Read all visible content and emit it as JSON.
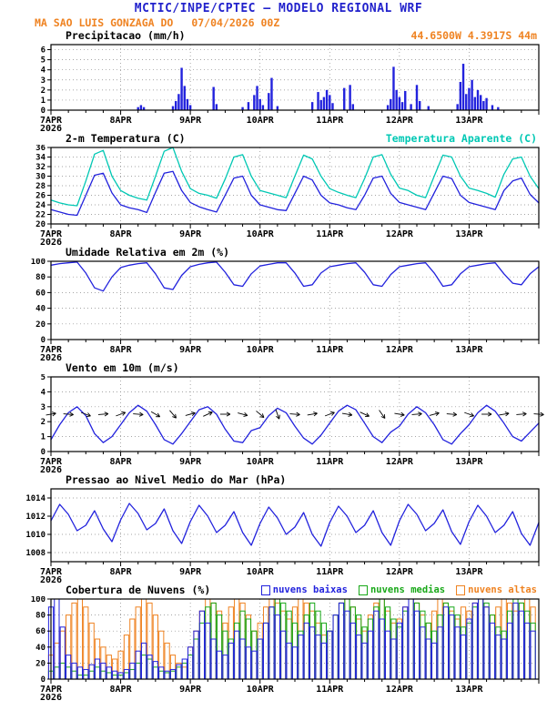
{
  "colors": {
    "title_blue": "#2222cc",
    "orange": "#ef8322",
    "line_blue": "#2222dd",
    "cyan": "#00c8b4",
    "green": "#18a818",
    "black": "#000000"
  },
  "header": {
    "title": "MCTIC/INPE/CPTEC — MODELO REGIONAL WRF",
    "station": "MA SAO LUIS GONZAGA DO",
    "run": "07/04/2026 00Z",
    "location": "44.6500W 4.3917S 44m"
  },
  "x_axis": {
    "hours_total": 168,
    "major_ticks": [
      0,
      24,
      48,
      72,
      96,
      120,
      144
    ],
    "labels": [
      "7APR",
      "8APR",
      "9APR",
      "10APR",
      "11APR",
      "12APR",
      "13APR"
    ],
    "year_label": "2026"
  },
  "chart_data": [
    {
      "id": "precip",
      "type": "bar",
      "title": "Precipitacao (mm/h)",
      "unit": "mm/h",
      "color": "#2222dd",
      "ylim": [
        0,
        6.5
      ],
      "yticks": [
        0,
        1,
        2,
        3,
        4,
        5,
        6
      ],
      "events": [
        [
          30,
          0.3
        ],
        [
          31,
          0.5
        ],
        [
          32,
          0.3
        ],
        [
          42,
          0.4
        ],
        [
          43,
          0.9
        ],
        [
          44,
          1.6
        ],
        [
          45,
          4.2
        ],
        [
          46,
          2.4
        ],
        [
          47,
          1.1
        ],
        [
          48,
          0.5
        ],
        [
          56,
          2.3
        ],
        [
          57,
          0.6
        ],
        [
          66,
          0.3
        ],
        [
          68,
          0.8
        ],
        [
          70,
          1.5
        ],
        [
          71,
          2.4
        ],
        [
          72,
          1.1
        ],
        [
          73,
          0.5
        ],
        [
          75,
          1.7
        ],
        [
          76,
          3.2
        ],
        [
          78,
          0.4
        ],
        [
          90,
          0.8
        ],
        [
          92,
          1.8
        ],
        [
          93,
          1.0
        ],
        [
          94,
          1.3
        ],
        [
          95,
          2.0
        ],
        [
          96,
          1.5
        ],
        [
          97,
          0.7
        ],
        [
          101,
          2.2
        ],
        [
          103,
          2.5
        ],
        [
          104,
          0.6
        ],
        [
          116,
          0.5
        ],
        [
          117,
          1.1
        ],
        [
          118,
          4.3
        ],
        [
          119,
          2.0
        ],
        [
          120,
          1.3
        ],
        [
          121,
          0.8
        ],
        [
          122,
          1.9
        ],
        [
          124,
          0.6
        ],
        [
          126,
          2.5
        ],
        [
          127,
          0.9
        ],
        [
          130,
          0.4
        ],
        [
          140,
          0.6
        ],
        [
          141,
          2.8
        ],
        [
          142,
          4.6
        ],
        [
          143,
          1.6
        ],
        [
          144,
          2.2
        ],
        [
          145,
          3.0
        ],
        [
          146,
          1.3
        ],
        [
          147,
          2.0
        ],
        [
          148,
          1.5
        ],
        [
          149,
          0.9
        ],
        [
          150,
          1.2
        ],
        [
          152,
          0.5
        ],
        [
          154,
          0.3
        ]
      ]
    },
    {
      "id": "temp2m",
      "type": "line",
      "title": "2-m Temperatura (C)",
      "step_hours": 3,
      "ylim": [
        20,
        36
      ],
      "yticks": [
        20,
        22,
        24,
        26,
        28,
        30,
        32,
        34,
        36
      ],
      "series": [
        {
          "name": "2-m Temperatura (C)",
          "color": "#2222dd",
          "values": [
            23.0,
            22.5,
            22.0,
            21.8,
            26.0,
            30.2,
            30.6,
            26.5,
            24.0,
            23.4,
            23.0,
            22.4,
            26.6,
            30.6,
            31.0,
            27.0,
            24.5,
            23.6,
            23.0,
            22.5,
            26.0,
            29.6,
            30.0,
            26.0,
            24.0,
            23.5,
            23.0,
            22.8,
            26.4,
            30.0,
            29.2,
            26.0,
            24.4,
            24.0,
            23.4,
            23.0,
            26.0,
            29.6,
            30.0,
            26.4,
            24.5,
            24.0,
            23.5,
            23.0,
            26.5,
            30.0,
            29.5,
            26.0,
            24.5,
            24.0,
            23.5,
            23.0,
            27.0,
            29.0,
            29.6,
            26.2,
            24.4
          ]
        },
        {
          "name": "Temperatura Aparente (C)",
          "color": "#00c8b4",
          "values": [
            25.0,
            24.4,
            24.0,
            23.8,
            29.0,
            34.6,
            35.4,
            30.0,
            27.0,
            26.0,
            25.4,
            25.0,
            30.0,
            35.2,
            36.0,
            31.0,
            27.4,
            26.4,
            26.0,
            25.4,
            29.4,
            34.0,
            34.5,
            30.0,
            27.0,
            26.5,
            26.0,
            25.5,
            30.0,
            34.4,
            33.6,
            30.0,
            27.4,
            26.6,
            26.0,
            25.5,
            29.5,
            34.0,
            34.5,
            30.4,
            27.5,
            27.0,
            26.0,
            25.5,
            30.0,
            34.4,
            34.0,
            30.0,
            27.5,
            27.0,
            26.4,
            25.6,
            30.4,
            33.6,
            34.0,
            30.0,
            27.4
          ]
        }
      ]
    },
    {
      "id": "rh2m",
      "type": "line",
      "title": "Umidade Relativa em 2m (%)",
      "step_hours": 3,
      "ylim": [
        0,
        100
      ],
      "yticks": [
        0,
        20,
        40,
        60,
        80,
        100
      ],
      "series": [
        {
          "name": "Umidade Relativa em 2m (%)",
          "color": "#2222dd",
          "values": [
            95,
            97,
            98,
            99,
            85,
            66,
            62,
            80,
            92,
            95,
            97,
            98,
            84,
            66,
            64,
            82,
            93,
            96,
            98,
            99,
            86,
            70,
            68,
            84,
            94,
            96,
            98,
            98,
            85,
            68,
            70,
            85,
            93,
            95,
            97,
            98,
            86,
            70,
            68,
            83,
            93,
            95,
            97,
            98,
            85,
            68,
            70,
            84,
            93,
            95,
            97,
            98,
            84,
            72,
            70,
            84,
            93
          ]
        }
      ]
    },
    {
      "id": "wind10m",
      "type": "line-barbs",
      "title": "Vento em 10m (m/s)",
      "step_hours": 3,
      "ylim": [
        0,
        5
      ],
      "yticks": [
        0,
        1,
        2,
        3,
        4,
        5
      ],
      "series": [
        {
          "name": "Vento em 10m (m/s)",
          "color": "#2222dd",
          "values": [
            0.8,
            1.8,
            2.6,
            3.0,
            2.4,
            1.2,
            0.6,
            1.0,
            1.8,
            2.6,
            3.1,
            2.7,
            1.8,
            0.8,
            0.5,
            1.2,
            2.0,
            2.8,
            3.0,
            2.5,
            1.5,
            0.7,
            0.6,
            1.4,
            1.6,
            2.4,
            2.9,
            2.6,
            1.7,
            0.9,
            0.5,
            1.1,
            1.9,
            2.7,
            3.1,
            2.8,
            1.9,
            1.0,
            0.6,
            1.3,
            1.7,
            2.5,
            3.0,
            2.6,
            1.8,
            0.8,
            0.5,
            1.2,
            1.8,
            2.6,
            3.1,
            2.7,
            1.9,
            1.0,
            0.7,
            1.3,
            1.9
          ]
        }
      ],
      "barbs": {
        "level": 2.5,
        "step_hours": 6,
        "dirs": [
          80,
          95,
          110,
          85,
          70,
          95,
          120,
          140,
          75,
          65,
          90,
          105,
          130,
          160,
          95,
          80,
          70,
          100,
          115,
          145,
          100,
          85,
          75,
          95,
          110,
          90,
          80,
          85,
          95
        ]
      }
    },
    {
      "id": "slp",
      "type": "line",
      "title": "Pressao ao Nivel Medio do Mar (hPa)",
      "step_hours": 3,
      "ylim": [
        1007,
        1015
      ],
      "yticks": [
        1008,
        1010,
        1012,
        1014
      ],
      "series": [
        {
          "name": "Pressao ao Nivel Medio do Mar (hPa)",
          "color": "#2222dd",
          "values": [
            1011.5,
            1013.3,
            1012.2,
            1010.4,
            1011.0,
            1012.6,
            1010.6,
            1009.2,
            1011.6,
            1013.4,
            1012.3,
            1010.5,
            1011.2,
            1012.8,
            1010.4,
            1009.0,
            1011.4,
            1013.2,
            1012.0,
            1010.2,
            1011.0,
            1012.5,
            1010.2,
            1008.8,
            1011.2,
            1013.0,
            1011.8,
            1010.0,
            1010.8,
            1012.4,
            1010.0,
            1008.7,
            1011.3,
            1013.1,
            1012.0,
            1010.2,
            1011.0,
            1012.6,
            1010.2,
            1008.8,
            1011.5,
            1013.3,
            1012.2,
            1010.4,
            1011.2,
            1012.7,
            1010.3,
            1008.9,
            1011.4,
            1013.2,
            1012.0,
            1010.2,
            1011.0,
            1012.5,
            1010.1,
            1008.8,
            1011.3
          ]
        }
      ]
    },
    {
      "id": "clouds",
      "type": "outline-bar",
      "title": "Cobertura de Nuvens (%)",
      "step_hours": 2,
      "ylim": [
        0,
        100
      ],
      "yticks": [
        0,
        20,
        40,
        60,
        80,
        100
      ],
      "series": [
        {
          "name": "nuvens baixas",
          "color": "#2222dd",
          "values": [
            90,
            100,
            65,
            30,
            20,
            15,
            12,
            18,
            25,
            20,
            15,
            10,
            8,
            12,
            20,
            35,
            45,
            30,
            22,
            15,
            10,
            12,
            18,
            25,
            40,
            60,
            85,
            70,
            50,
            35,
            30,
            45,
            60,
            50,
            40,
            35,
            50,
            70,
            90,
            80,
            60,
            45,
            40,
            55,
            70,
            65,
            55,
            45,
            60,
            80,
            95,
            85,
            70,
            55,
            45,
            60,
            85,
            75,
            60,
            50,
            70,
            90,
            100,
            85,
            65,
            50,
            45,
            65,
            90,
            80,
            65,
            55,
            75,
            95,
            100,
            90,
            70,
            55,
            50,
            70,
            95,
            85,
            70,
            60
          ]
        },
        {
          "name": "nuvens medias",
          "color": "#18a818",
          "values": [
            10,
            15,
            20,
            15,
            10,
            5,
            5,
            10,
            15,
            10,
            8,
            5,
            5,
            8,
            12,
            20,
            30,
            25,
            15,
            10,
            8,
            10,
            15,
            20,
            30,
            50,
            70,
            90,
            95,
            80,
            60,
            50,
            70,
            85,
            75,
            60,
            50,
            70,
            90,
            100,
            95,
            85,
            70,
            60,
            80,
            95,
            85,
            70,
            60,
            80,
            95,
            100,
            90,
            80,
            65,
            75,
            90,
            100,
            90,
            75,
            65,
            85,
            100,
            95,
            85,
            70,
            60,
            80,
            95,
            90,
            80,
            65,
            70,
            90,
            100,
            95,
            80,
            65,
            60,
            85,
            100,
            95,
            85,
            70
          ]
        },
        {
          "name": "nuvens altas",
          "color": "#ef8322",
          "values": [
            30,
            45,
            60,
            80,
            95,
            100,
            90,
            70,
            50,
            40,
            30,
            25,
            35,
            55,
            75,
            90,
            100,
            95,
            80,
            60,
            45,
            30,
            20,
            15,
            40,
            60,
            85,
            100,
            95,
            85,
            70,
            90,
            100,
            95,
            80,
            60,
            70,
            90,
            100,
            95,
            85,
            75,
            90,
            100,
            95,
            85,
            70,
            55,
            60,
            80,
            95,
            100,
            90,
            75,
            60,
            80,
            95,
            100,
            85,
            70,
            75,
            90,
            100,
            95,
            80,
            70,
            85,
            100,
            95,
            85,
            75,
            90,
            85,
            95,
            100,
            90,
            80,
            90,
            100,
            95,
            85,
            95,
            100,
            90
          ]
        }
      ]
    }
  ]
}
